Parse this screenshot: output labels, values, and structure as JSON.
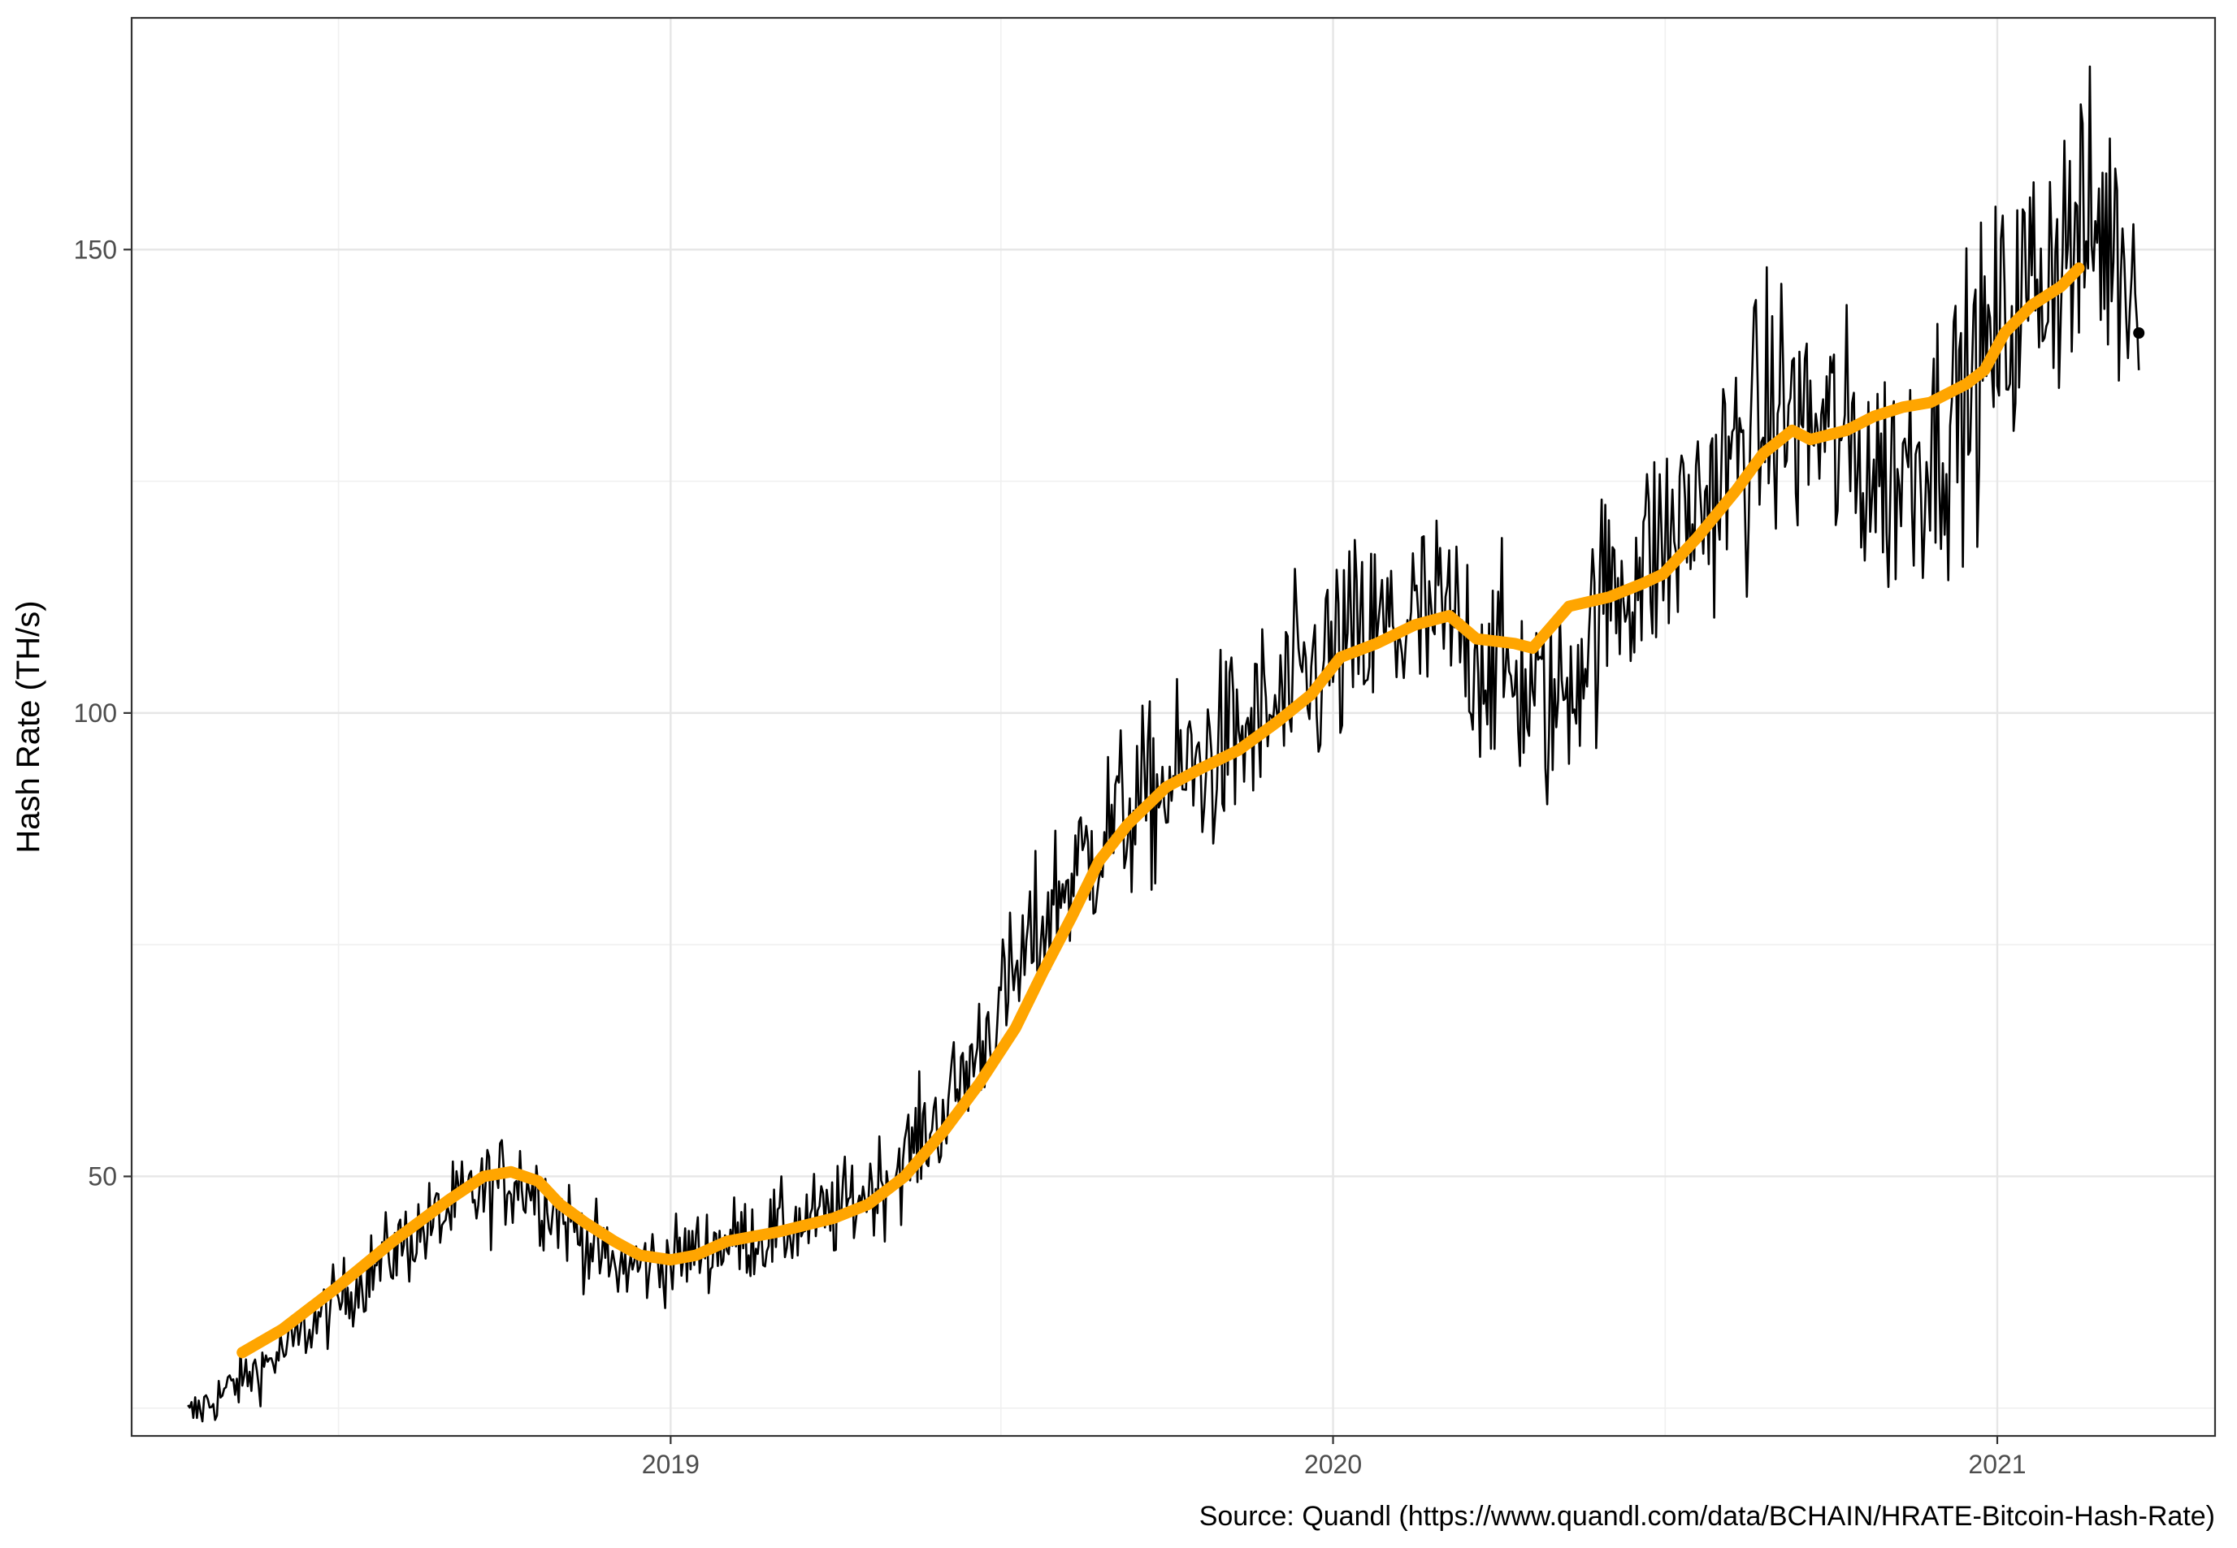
{
  "chart_data": {
    "type": "line",
    "title": "",
    "xlabel": "",
    "ylabel": "Hash Rate (TH/s)",
    "caption": "Source: Quandl (https://www.quandl.com/data/BCHAIN/HRATE-Bitcoin-Hash-Rate)",
    "x_ticks": [
      "2019",
      "2020",
      "2021"
    ],
    "y_ticks": [
      50,
      100,
      150
    ],
    "xlim": [
      "2018-03-10",
      "2021-05-01"
    ],
    "ylim": [
      22,
      175
    ],
    "grid": true,
    "legend": "none",
    "colors": {
      "raw": "#000000",
      "smoothed": "#FFA500"
    },
    "series": [
      {
        "key": "raw",
        "type": "noisy-daily",
        "anchors": [
          [
            "2018-04-10",
            24
          ],
          [
            "2018-06-01",
            31
          ],
          [
            "2018-08-01",
            42
          ],
          [
            "2018-09-15",
            48
          ],
          [
            "2018-10-10",
            50
          ],
          [
            "2018-11-01",
            46
          ],
          [
            "2018-12-01",
            40
          ],
          [
            "2019-01-01",
            41
          ],
          [
            "2019-02-01",
            43
          ],
          [
            "2019-03-01",
            44
          ],
          [
            "2019-04-01",
            46
          ],
          [
            "2019-05-01",
            50
          ],
          [
            "2019-06-01",
            57
          ],
          [
            "2019-07-01",
            68
          ],
          [
            "2019-08-01",
            80
          ],
          [
            "2019-09-01",
            88
          ],
          [
            "2019-10-01",
            92
          ],
          [
            "2019-11-01",
            96
          ],
          [
            "2019-12-01",
            100
          ],
          [
            "2020-01-01",
            106
          ],
          [
            "2020-02-01",
            109
          ],
          [
            "2020-03-01",
            110
          ],
          [
            "2020-04-01",
            105
          ],
          [
            "2020-05-01",
            100
          ],
          [
            "2020-06-01",
            113
          ],
          [
            "2020-07-01",
            118
          ],
          [
            "2020-08-01",
            125
          ],
          [
            "2020-09-01",
            133
          ],
          [
            "2020-10-01",
            130
          ],
          [
            "2020-11-01",
            125
          ],
          [
            "2020-12-01",
            130
          ],
          [
            "2021-01-01",
            140
          ],
          [
            "2021-02-01",
            150
          ],
          [
            "2021-03-01",
            152
          ],
          [
            "2021-03-20",
            147
          ]
        ],
        "last_point": [
          "2021-03-20",
          141
        ]
      },
      {
        "key": "smoothed",
        "type": "line",
        "points": [
          [
            "2018-05-10",
            31
          ],
          [
            "2018-06-01",
            33.5
          ],
          [
            "2018-07-01",
            38
          ],
          [
            "2018-08-01",
            43
          ],
          [
            "2018-09-01",
            47.5
          ],
          [
            "2018-09-20",
            50
          ],
          [
            "2018-10-05",
            50.5
          ],
          [
            "2018-10-20",
            49.5
          ],
          [
            "2018-11-01",
            47
          ],
          [
            "2018-11-15",
            45
          ],
          [
            "2018-12-01",
            43
          ],
          [
            "2018-12-15",
            41.5
          ],
          [
            "2019-01-01",
            41
          ],
          [
            "2019-01-15",
            41.5
          ],
          [
            "2019-02-01",
            43
          ],
          [
            "2019-03-01",
            44
          ],
          [
            "2019-04-01",
            45.5
          ],
          [
            "2019-04-20",
            47
          ],
          [
            "2019-05-10",
            50
          ],
          [
            "2019-06-01",
            55
          ],
          [
            "2019-06-20",
            60
          ],
          [
            "2019-07-10",
            66
          ],
          [
            "2019-07-25",
            72
          ],
          [
            "2019-08-10",
            78
          ],
          [
            "2019-08-25",
            84
          ],
          [
            "2019-09-10",
            88
          ],
          [
            "2019-10-01",
            92
          ],
          [
            "2019-10-20",
            94
          ],
          [
            "2019-11-10",
            96
          ],
          [
            "2019-12-01",
            99
          ],
          [
            "2019-12-20",
            102
          ],
          [
            "2020-01-05",
            106
          ],
          [
            "2020-01-25",
            107.5
          ],
          [
            "2020-02-15",
            109.5
          ],
          [
            "2020-03-05",
            110.5
          ],
          [
            "2020-03-20",
            108
          ],
          [
            "2020-04-10",
            107.5
          ],
          [
            "2020-04-20",
            107
          ],
          [
            "2020-05-10",
            111.5
          ],
          [
            "2020-06-01",
            112.5
          ],
          [
            "2020-06-20",
            114
          ],
          [
            "2020-07-01",
            115
          ],
          [
            "2020-07-20",
            119
          ],
          [
            "2020-08-10",
            124
          ],
          [
            "2020-08-25",
            128
          ],
          [
            "2020-09-10",
            130.5
          ],
          [
            "2020-09-20",
            129.5
          ],
          [
            "2020-10-10",
            130.5
          ],
          [
            "2020-10-25",
            132
          ],
          [
            "2020-11-10",
            133
          ],
          [
            "2020-11-25",
            133.5
          ],
          [
            "2020-12-15",
            135.5
          ],
          [
            "2020-12-25",
            137
          ],
          [
            "2021-01-05",
            141
          ],
          [
            "2021-01-20",
            144
          ],
          [
            "2021-02-05",
            146
          ],
          [
            "2021-02-15",
            148
          ]
        ]
      }
    ]
  }
}
